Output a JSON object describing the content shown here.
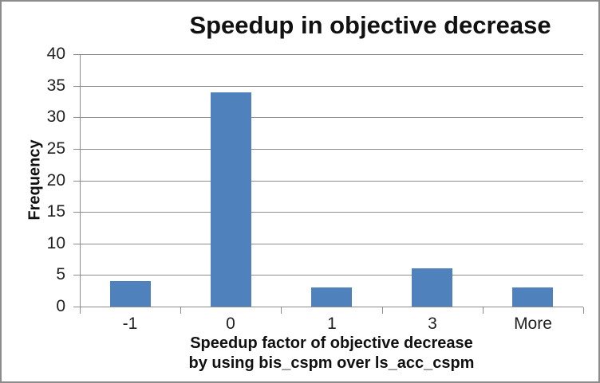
{
  "window": {
    "background": "#FFFFFF",
    "border_color": "#8C8C8C"
  },
  "chart_data": {
    "type": "bar",
    "title": "Speedup in objective decrease",
    "categories": [
      "-1",
      "0",
      "1",
      "3",
      "More"
    ],
    "values": [
      4,
      34,
      3,
      6,
      3
    ],
    "ylabel": "Frequency",
    "xlabel_lines": [
      "Speedup factor of objective decrease",
      "by using bis_cspm over ls_acc_cspm"
    ],
    "ylim": [
      0,
      40
    ],
    "ytick_step": 5,
    "yticks": [
      0,
      5,
      10,
      15,
      20,
      25,
      30,
      35,
      40
    ],
    "grid": true,
    "legend": "none",
    "bar_color": "#4F81BD",
    "gridline_color": "#8C8C8C",
    "axis_color": "#8C8C8C",
    "text_color": "#1F1F1F"
  }
}
